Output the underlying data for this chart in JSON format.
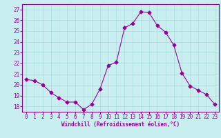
{
  "x": [
    0,
    1,
    2,
    3,
    4,
    5,
    6,
    7,
    8,
    9,
    10,
    11,
    12,
    13,
    14,
    15,
    16,
    17,
    18,
    19,
    20,
    21,
    22,
    23
  ],
  "y": [
    20.5,
    20.4,
    20.0,
    19.3,
    18.8,
    18.4,
    18.4,
    17.7,
    18.2,
    19.6,
    21.8,
    22.1,
    25.3,
    25.7,
    26.8,
    26.7,
    25.5,
    24.9,
    23.7,
    21.1,
    19.9,
    19.5,
    19.1,
    18.2
  ],
  "line_color": "#990099",
  "marker": "D",
  "markersize": 2.5,
  "linewidth": 0.8,
  "xlim": [
    -0.5,
    23.5
  ],
  "ylim": [
    17.5,
    27.5
  ],
  "yticks": [
    18,
    19,
    20,
    21,
    22,
    23,
    24,
    25,
    26,
    27
  ],
  "xticks": [
    0,
    1,
    2,
    3,
    4,
    5,
    6,
    7,
    8,
    9,
    10,
    11,
    12,
    13,
    14,
    15,
    16,
    17,
    18,
    19,
    20,
    21,
    22,
    23
  ],
  "xlabel": "Windchill (Refroidissement éolien,°C)",
  "background_color": "#c8eef0",
  "grid_color": "#aadddd",
  "label_color": "#990099",
  "tick_color": "#990099",
  "xlabel_fontsize": 5.5,
  "tick_fontsize": 5.5
}
